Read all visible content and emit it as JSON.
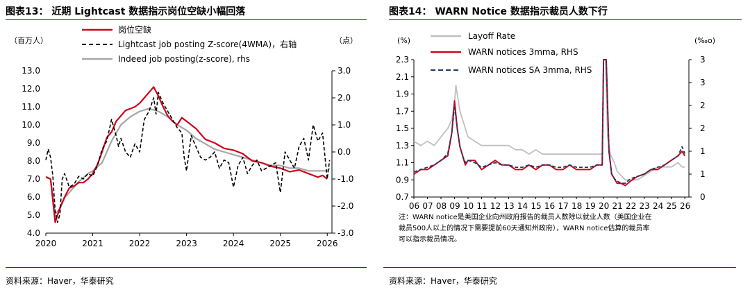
{
  "left": {
    "title": "图表13：  近期 Lightcast 数据指示岗位空缺小幅回落",
    "source": "资料来源：Haver，华泰研究",
    "unit_left": "（百万人）",
    "unit_right": "（点）",
    "legend": {
      "items": [
        "岗位空缺",
        "Lightcast job posting Z-score(4WMA)，右轴",
        "Indeed job posting(z-score), rhs"
      ]
    },
    "colors": {
      "openings": "#d0021b",
      "lightcast": "#000000",
      "indeed": "#a6a6a6"
    },
    "ylabels_left": [
      "13.0",
      "12.0",
      "11.0",
      "10.0",
      "9.0",
      "8.0",
      "7.0",
      "6.0",
      "5.0",
      "4.0"
    ],
    "ylabels_right": [
      "3.0",
      "2.0",
      "1.0",
      "0.0",
      "-1.0",
      "-2.0",
      "-3.0"
    ],
    "xlabels": [
      "2020",
      "2021",
      "2022",
      "2023",
      "2024",
      "2025",
      "2026"
    ]
  },
  "right": {
    "title": "图表14：  WARN Notice 数据指示裁员人数下行",
    "source": "资料来源：Haver，华泰研究",
    "unit_left": "(%)",
    "unit_right": "(‰o)",
    "legend": {
      "items": [
        "Layoff Rate",
        "WARN notices 3mma, RHS",
        "WARN notices SA 3mma, RHS"
      ]
    },
    "colors": {
      "layoff": "#bfbfbf",
      "warn": "#d0021b",
      "warn_sa": "#1f3a64"
    },
    "ylabels_left": [
      "2.3",
      "2.1",
      "1.9",
      "1.7",
      "1.5",
      "1.3",
      "1.1",
      "0.9",
      "0.7"
    ],
    "ylabels_right": [
      "3",
      "3",
      "2",
      "2",
      "1",
      "1",
      "0"
    ],
    "xlabels": [
      "06",
      "07",
      "08",
      "09",
      "10",
      "11",
      "12",
      "13",
      "14",
      "15",
      "16",
      "17",
      "18",
      "19",
      "20",
      "21",
      "22",
      "23",
      "24",
      "25",
      "26"
    ],
    "note_lines": [
      "注：WARN notice是美国企业向州政府报告的裁员人数除以就业人数（美国企业在",
      "裁员500人以上的情况下需要提前60天通知州政府），WARN notice估算的裁员率",
      "可以指示裁员情况。"
    ]
  },
  "chart_data": [
    {
      "type": "line",
      "title": "近期 Lightcast 数据指示岗位空缺小幅回落",
      "ylabel": "百万人",
      "y2label": "点",
      "ylim": [
        4,
        13
      ],
      "y2lim": [
        -3,
        3
      ],
      "xlim": [
        2020,
        2026.1
      ],
      "series": [
        {
          "name": "岗位空缺",
          "axis": "left",
          "x": [
            2020.0,
            2020.1,
            2020.2,
            2020.3,
            2020.4,
            2020.5,
            2020.6,
            2020.7,
            2020.8,
            2020.9,
            2021.0,
            2021.1,
            2021.2,
            2021.3,
            2021.4,
            2021.5,
            2021.6,
            2021.7,
            2021.8,
            2021.9,
            2022.0,
            2022.1,
            2022.2,
            2022.3,
            2022.4,
            2022.5,
            2022.6,
            2022.7,
            2022.8,
            2022.9,
            2023.0,
            2023.2,
            2023.4,
            2023.6,
            2023.8,
            2024.0,
            2024.2,
            2024.4,
            2024.6,
            2024.8,
            2025.0,
            2025.2,
            2025.4,
            2025.6,
            2025.8,
            2025.9,
            2026.0
          ],
          "values": [
            7.1,
            7.0,
            4.6,
            5.4,
            6.0,
            6.5,
            6.6,
            6.8,
            6.8,
            7.0,
            7.3,
            7.8,
            8.5,
            9.3,
            9.6,
            10.2,
            10.5,
            10.8,
            10.9,
            11.0,
            11.2,
            11.5,
            11.8,
            12.1,
            11.6,
            11.0,
            10.5,
            10.2,
            10.0,
            10.4,
            10.2,
            9.8,
            9.2,
            9.0,
            8.7,
            8.6,
            8.4,
            8.0,
            7.9,
            7.7,
            7.6,
            7.4,
            7.5,
            7.3,
            7.1,
            7.2,
            7.0
          ]
        },
        {
          "name": "Lightcast job posting Z-score(4WMA)，右轴",
          "axis": "right",
          "x": [
            2020.0,
            2020.05,
            2020.1,
            2020.15,
            2020.2,
            2020.25,
            2020.3,
            2020.35,
            2020.4,
            2020.5,
            2020.6,
            2020.7,
            2020.8,
            2020.9,
            2021.0,
            2021.1,
            2021.2,
            2021.3,
            2021.4,
            2021.5,
            2021.55,
            2021.6,
            2021.7,
            2021.8,
            2021.9,
            2022.0,
            2022.1,
            2022.2,
            2022.3,
            2022.35,
            2022.4,
            2022.5,
            2022.6,
            2022.7,
            2022.8,
            2022.9,
            2022.95,
            2023.0,
            2023.1,
            2023.2,
            2023.3,
            2023.4,
            2023.5,
            2023.6,
            2023.7,
            2023.8,
            2023.9,
            2024.0,
            2024.1,
            2024.2,
            2024.3,
            2024.4,
            2024.5,
            2024.6,
            2024.7,
            2024.8,
            2024.9,
            2025.0,
            2025.1,
            2025.2,
            2025.3,
            2025.4,
            2025.5,
            2025.6,
            2025.7,
            2025.8,
            2025.9,
            2026.0,
            2026.05
          ],
          "values": [
            -0.3,
            0.1,
            -0.2,
            -0.9,
            -2.2,
            -2.6,
            -2.3,
            -1.0,
            -0.8,
            -1.3,
            -1.2,
            -0.9,
            -1.0,
            -0.8,
            -0.9,
            -0.5,
            0.1,
            0.4,
            1.2,
            0.6,
            0.2,
            0.5,
            0.0,
            -0.2,
            0.3,
            0.0,
            1.2,
            1.5,
            2.0,
            1.4,
            2.2,
            1.8,
            1.5,
            1.2,
            0.9,
            0.7,
            -0.2,
            -0.7,
            0.6,
            0.2,
            -0.2,
            -0.3,
            -0.2,
            0.0,
            -0.6,
            -0.3,
            -0.4,
            -1.3,
            -0.5,
            -0.2,
            -0.8,
            -0.5,
            -0.3,
            -0.7,
            -0.6,
            -0.5,
            -0.4,
            -1.5,
            0.0,
            -0.3,
            -0.6,
            0.2,
            0.5,
            -0.3,
            1.0,
            0.4,
            0.7,
            -1.0,
            -0.3
          ]
        },
        {
          "name": "Indeed job posting(z-score), rhs",
          "axis": "right",
          "x": [
            2020.0,
            2020.1,
            2020.2,
            2020.3,
            2020.4,
            2020.5,
            2020.7,
            2020.9,
            2021.0,
            2021.2,
            2021.4,
            2021.6,
            2021.8,
            2022.0,
            2022.2,
            2022.4,
            2022.6,
            2022.8,
            2023.0,
            2023.2,
            2023.4,
            2023.6,
            2023.8,
            2024.0,
            2024.2,
            2024.4,
            2024.6,
            2024.8,
            2025.0,
            2025.2,
            2025.4,
            2025.6,
            2025.8,
            2026.0,
            2026.05
          ],
          "values": [
            -0.9,
            -1.0,
            -2.3,
            -2.1,
            -1.7,
            -1.5,
            -1.1,
            -0.8,
            -0.7,
            -0.4,
            0.4,
            1.0,
            1.3,
            1.5,
            1.6,
            1.5,
            1.3,
            1.0,
            0.8,
            0.5,
            0.3,
            0.1,
            0.0,
            -0.1,
            -0.2,
            -0.3,
            -0.4,
            -0.5,
            -0.5,
            -0.6,
            -0.6,
            -0.7,
            -0.7,
            -0.7,
            -0.6
          ]
        }
      ]
    },
    {
      "type": "line",
      "title": "WARN Notice 数据指示裁员人数下行",
      "ylabel": "%",
      "y2label": "‰o",
      "ylim": [
        0.7,
        2.3
      ],
      "y2lim": [
        0,
        3
      ],
      "xlim": [
        2006,
        2026.3
      ],
      "series": [
        {
          "name": "Layoff Rate",
          "axis": "left",
          "x": [
            2006.0,
            2006.5,
            2007.0,
            2007.5,
            2008.0,
            2008.5,
            2008.8,
            2009.0,
            2009.1,
            2009.2,
            2009.4,
            2009.6,
            2009.8,
            2010.0,
            2010.5,
            2011.0,
            2011.5,
            2012.0,
            2012.5,
            2013.0,
            2013.5,
            2014.0,
            2014.5,
            2015.0,
            2015.5,
            2016.0,
            2016.5,
            2017.0,
            2017.5,
            2018.0,
            2018.5,
            2019.0,
            2019.5,
            2019.9,
            2020.0,
            2020.1,
            2020.15,
            2020.3,
            2020.5,
            2020.8,
            2021.0,
            2021.3,
            2021.6,
            2022.0,
            2022.5,
            2023.0,
            2023.5,
            2024.0,
            2024.5,
            2025.0,
            2025.5,
            2025.8,
            2026.0
          ],
          "values": [
            1.35,
            1.3,
            1.35,
            1.3,
            1.4,
            1.5,
            1.6,
            1.8,
            2.0,
            1.9,
            1.7,
            1.6,
            1.5,
            1.4,
            1.35,
            1.3,
            1.3,
            1.3,
            1.3,
            1.3,
            1.25,
            1.25,
            1.2,
            1.25,
            1.2,
            1.2,
            1.2,
            1.2,
            1.2,
            1.2,
            1.2,
            1.2,
            1.2,
            1.2,
            2.3,
            2.3,
            2.3,
            1.4,
            1.2,
            1.1,
            1.0,
            0.95,
            0.9,
            0.9,
            0.9,
            0.95,
            1.0,
            1.05,
            1.05,
            1.05,
            1.1,
            1.05,
            1.05
          ]
        },
        {
          "name": "WARN notices 3mma, RHS",
          "axis": "right",
          "x": [
            2006.0,
            2006.5,
            2007.0,
            2007.5,
            2008.0,
            2008.5,
            2008.8,
            2009.0,
            2009.2,
            2009.4,
            2009.6,
            2009.8,
            2010.0,
            2010.5,
            2011.0,
            2011.5,
            2012.0,
            2012.5,
            2013.0,
            2013.5,
            2014.0,
            2014.5,
            2015.0,
            2015.5,
            2016.0,
            2016.5,
            2017.0,
            2017.5,
            2018.0,
            2018.5,
            2019.0,
            2019.5,
            2019.9,
            2020.0,
            2020.1,
            2020.15,
            2020.2,
            2020.4,
            2020.6,
            2020.8,
            2021.0,
            2021.3,
            2021.6,
            2022.0,
            2022.5,
            2023.0,
            2023.5,
            2024.0,
            2024.5,
            2025.0,
            2025.5,
            2025.8,
            2026.0
          ],
          "values": [
            0.5,
            0.6,
            0.6,
            0.7,
            0.8,
            0.9,
            1.4,
            2.1,
            1.5,
            1.1,
            0.9,
            0.7,
            0.8,
            0.8,
            0.6,
            0.7,
            0.8,
            0.7,
            0.7,
            0.6,
            0.6,
            0.7,
            0.6,
            0.7,
            0.7,
            0.6,
            0.6,
            0.7,
            0.6,
            0.6,
            0.6,
            0.7,
            0.7,
            3.0,
            3.0,
            3.0,
            3.0,
            1.0,
            0.5,
            0.4,
            0.3,
            0.3,
            0.25,
            0.35,
            0.45,
            0.5,
            0.6,
            0.6,
            0.7,
            0.8,
            0.9,
            1.0,
            0.9
          ]
        },
        {
          "name": "WARN notices SA 3mma, RHS",
          "axis": "right",
          "x": [
            2006.0,
            2006.5,
            2007.0,
            2007.5,
            2008.0,
            2008.5,
            2008.8,
            2009.0,
            2009.2,
            2009.4,
            2009.6,
            2009.8,
            2010.0,
            2010.5,
            2011.0,
            2011.5,
            2012.0,
            2012.5,
            2013.0,
            2013.5,
            2014.0,
            2014.5,
            2015.0,
            2015.5,
            2016.0,
            2016.5,
            2017.0,
            2017.5,
            2018.0,
            2018.5,
            2019.0,
            2019.5,
            2019.9,
            2020.0,
            2020.1,
            2020.15,
            2020.2,
            2020.4,
            2020.6,
            2020.8,
            2021.0,
            2021.3,
            2021.6,
            2022.0,
            2022.5,
            2023.0,
            2023.5,
            2024.0,
            2024.5,
            2025.0,
            2025.5,
            2025.8,
            2026.0
          ],
          "values": [
            0.55,
            0.6,
            0.65,
            0.7,
            0.8,
            0.95,
            1.4,
            2.0,
            1.5,
            1.1,
            0.9,
            0.75,
            0.8,
            0.75,
            0.65,
            0.7,
            0.75,
            0.7,
            0.7,
            0.65,
            0.65,
            0.7,
            0.65,
            0.7,
            0.7,
            0.65,
            0.65,
            0.7,
            0.65,
            0.65,
            0.65,
            0.7,
            0.7,
            3.0,
            3.0,
            3.0,
            3.0,
            1.0,
            0.5,
            0.4,
            0.35,
            0.3,
            0.3,
            0.4,
            0.45,
            0.5,
            0.6,
            0.65,
            0.7,
            0.8,
            0.9,
            1.1,
            0.95
          ]
        }
      ]
    }
  ]
}
